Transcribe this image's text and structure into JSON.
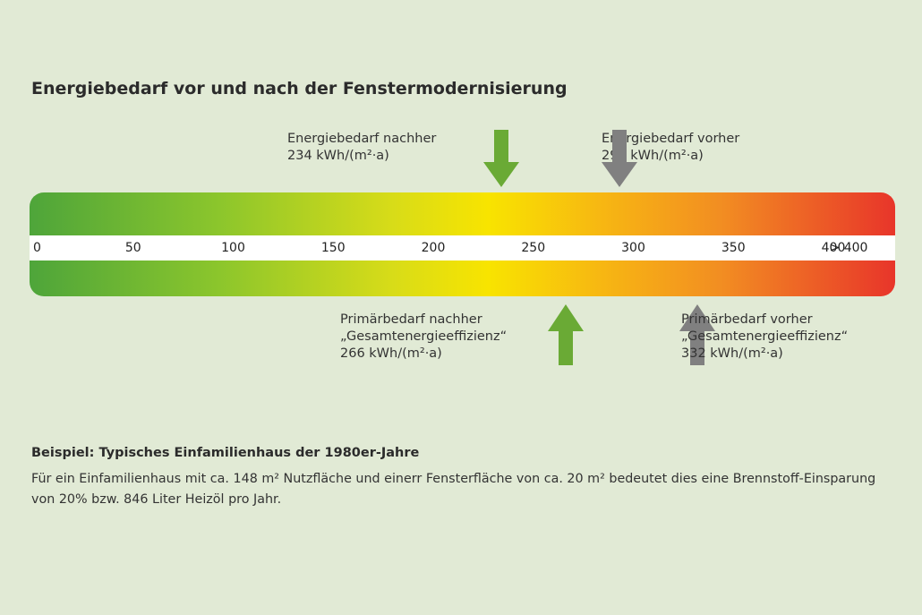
{
  "title": "Energiebedarf vor und nach der Fenstermodernisierung",
  "scale": {
    "ticks": [
      {
        "label": "0",
        "value": 0
      },
      {
        "label": "50",
        "value": 50
      },
      {
        "label": "100",
        "value": 100
      },
      {
        "label": "150",
        "value": 150
      },
      {
        "label": "200",
        "value": 200
      },
      {
        "label": "250",
        "value": 250
      },
      {
        "label": "300",
        "value": 300
      },
      {
        "label": "350",
        "value": 350
      },
      {
        "label": "400",
        "value": 400
      },
      {
        "label": "> 400",
        "value": 440
      }
    ],
    "gradient": [
      "#4ea53a",
      "#8cc62c",
      "#f8e400",
      "#f7b712",
      "#e8352a"
    ]
  },
  "markers": {
    "energy_after": {
      "label": "Energiebedarf nachher",
      "value_text": "234 kWh/(m²·a)",
      "value": 234,
      "direction": "down",
      "color": "#6aaa35"
    },
    "energy_before": {
      "label": "Energiebedarf vorher",
      "value_text": "293 kWh/(m²·a)",
      "value": 293,
      "direction": "down",
      "color": "#808080"
    },
    "primary_after": {
      "label": "Primärbedarf nachher",
      "sublabel": "„Gesamtenergieeffizienz“",
      "value_text": "266 kWh/(m²·a)",
      "value": 266,
      "direction": "up",
      "color": "#6aaa35"
    },
    "primary_before": {
      "label": "Primärbedarf vorher",
      "sublabel": "„Gesamtenergieeffizienz“",
      "value_text": "332 kWh/(m²·a)",
      "value": 332,
      "direction": "up",
      "color": "#808080"
    }
  },
  "example": {
    "heading": "Beispiel: Typisches Einfamilienhaus der 1980er-Jahre",
    "text": "Für ein Einfamilienhaus mit ca. 148 m² Nutzfläche und einerr Fensterfläche von ca. 20 m² bedeutet dies eine Brennstoff-Einspa­rung von 20% bzw. 846 Liter Heizöl pro Jahr."
  }
}
